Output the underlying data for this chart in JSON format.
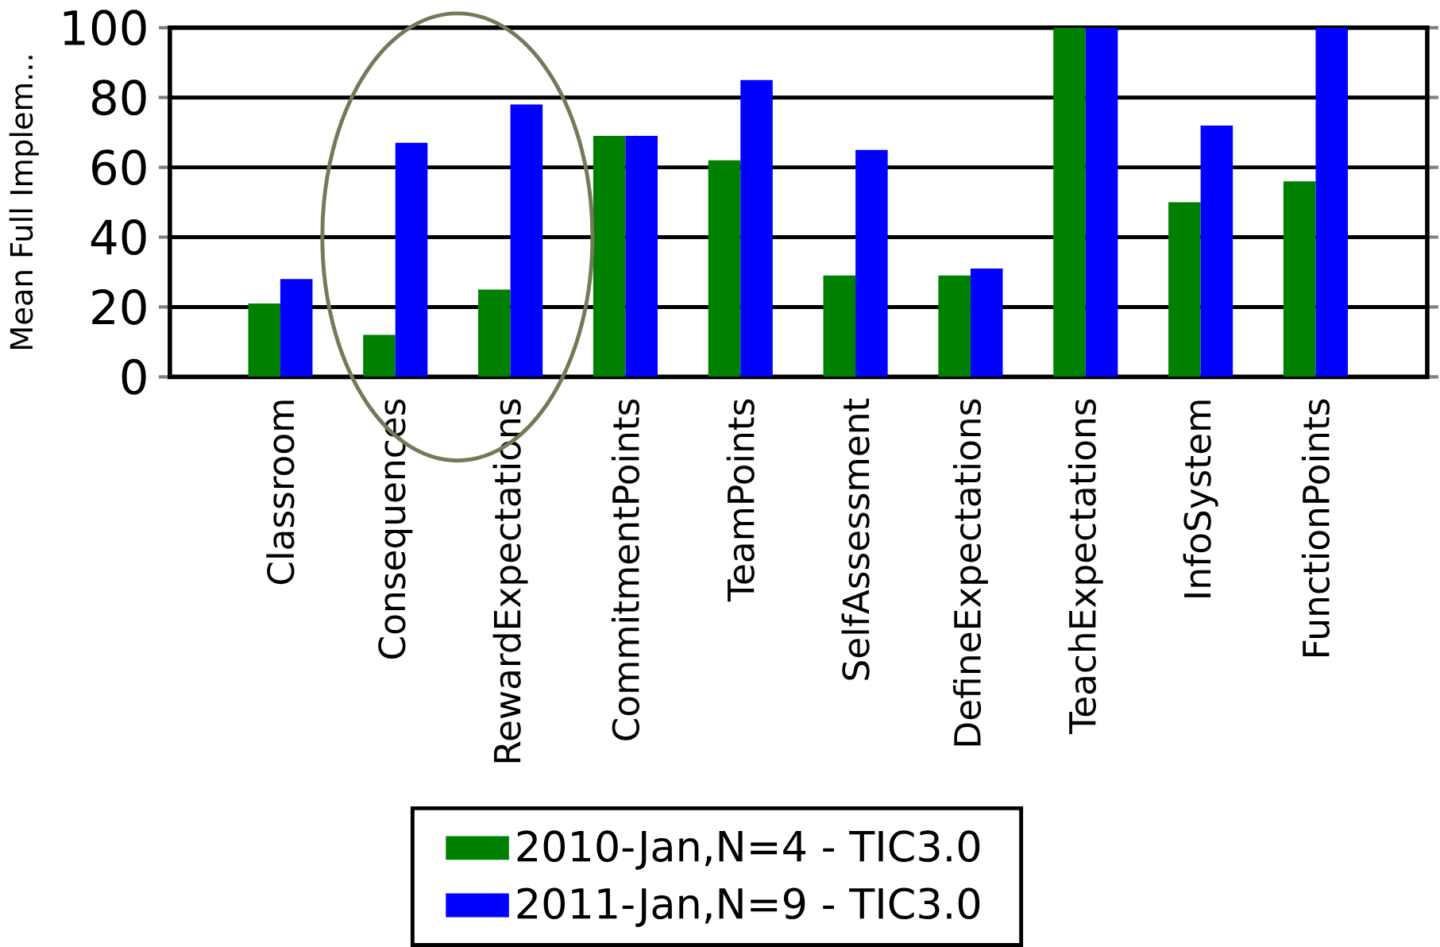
{
  "chart_data": {
    "type": "bar",
    "ylabel": "Mean Full Implem...",
    "categories": [
      "Classroom",
      "Consequences",
      "RewardExpectations",
      "CommitmentPoints",
      "TeamPoints",
      "SelfAssessment",
      "DefineExpectations",
      "TeachExpectations",
      "InfoSystem",
      "FunctionPoints"
    ],
    "series": [
      {
        "name": "2010-Jan,N=4 - TIC3.0",
        "color": "#008000",
        "values": [
          21,
          12,
          25,
          69,
          62,
          29,
          29,
          100,
          50,
          56
        ]
      },
      {
        "name": "2011-Jan,N=9 - TIC3.0",
        "color": "#0000ff",
        "values": [
          28,
          67,
          78,
          69,
          85,
          65,
          31,
          100,
          72,
          100
        ]
      }
    ],
    "ylim": [
      0,
      100
    ],
    "yticks": [
      0,
      20,
      40,
      60,
      80,
      100
    ],
    "grid": "y",
    "legend": "bottom"
  }
}
